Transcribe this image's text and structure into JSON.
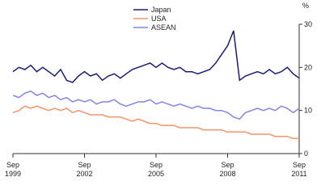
{
  "chart_data": {
    "type": "line",
    "y_label": "%",
    "x": [
      "1999-09",
      "1999-12",
      "2000-03",
      "2000-06",
      "2000-09",
      "2000-12",
      "2001-03",
      "2001-06",
      "2001-09",
      "2001-12",
      "2002-03",
      "2002-06",
      "2002-09",
      "2002-12",
      "2003-03",
      "2003-06",
      "2003-09",
      "2003-12",
      "2004-03",
      "2004-06",
      "2004-09",
      "2004-12",
      "2005-03",
      "2005-06",
      "2005-09",
      "2005-12",
      "2006-03",
      "2006-06",
      "2006-09",
      "2006-12",
      "2007-03",
      "2007-06",
      "2007-09",
      "2007-12",
      "2008-03",
      "2008-06",
      "2008-09",
      "2008-12",
      "2009-03",
      "2009-06",
      "2009-09",
      "2009-12",
      "2010-03",
      "2010-06",
      "2010-09",
      "2010-12",
      "2011-03",
      "2011-06",
      "2011-09"
    ],
    "series": [
      {
        "name": "Japan",
        "color": "#1b1b72",
        "values": [
          19,
          20,
          19.5,
          20.5,
          19,
          20,
          19,
          18,
          19.5,
          17,
          16.5,
          18,
          19,
          18,
          18.5,
          17,
          18,
          18.5,
          17.5,
          18.5,
          19.5,
          20,
          20.5,
          21,
          20,
          21,
          20,
          19.5,
          20,
          19,
          19,
          18.5,
          19,
          19.5,
          21,
          23,
          25,
          28.5,
          17,
          18,
          18.5,
          19,
          18.5,
          19.5,
          18.5,
          19,
          20,
          18.5,
          17.5
        ]
      },
      {
        "name": "USA",
        "color": "#f0956c",
        "values": [
          9.5,
          10,
          11,
          10.5,
          11,
          10.5,
          10,
          10.5,
          10,
          10.5,
          9.5,
          10,
          9.5,
          9,
          9,
          9,
          8.5,
          8.5,
          8.5,
          8,
          7.5,
          8,
          7.5,
          7,
          7,
          6.5,
          6.5,
          6.5,
          6,
          6,
          6,
          6,
          5.5,
          5.5,
          5.5,
          5.5,
          5,
          5,
          5,
          5,
          4.5,
          4.5,
          4.5,
          4.5,
          4,
          4,
          4,
          3.5,
          3.5
        ]
      },
      {
        "name": "ASEAN",
        "color": "#8484e0",
        "values": [
          13.5,
          13,
          14,
          14.5,
          13.5,
          14,
          13,
          13.5,
          12.5,
          13,
          12,
          12.5,
          12,
          12.5,
          11.5,
          12,
          12,
          12.5,
          11.5,
          11,
          11.5,
          12,
          12,
          12.5,
          11.5,
          12,
          11.5,
          11,
          11.5,
          11,
          10.5,
          11,
          10.5,
          10.5,
          10,
          10,
          9.5,
          8.5,
          8,
          9.5,
          10,
          10.5,
          10,
          10.5,
          10,
          11,
          10.5,
          9.5,
          10.5
        ]
      }
    ],
    "ylim": [
      0,
      30
    ],
    "yticks": [
      0,
      10,
      20,
      30
    ],
    "xticks": [
      {
        "value": "1999-09",
        "label": "Sep 1999"
      },
      {
        "value": "2002-09",
        "label": "Sep 2002"
      },
      {
        "value": "2005-09",
        "label": "Sep 2005"
      },
      {
        "value": "2008-09",
        "label": "Sep 2008"
      },
      {
        "value": "2011-09",
        "label": "Sep 2011"
      }
    ]
  }
}
